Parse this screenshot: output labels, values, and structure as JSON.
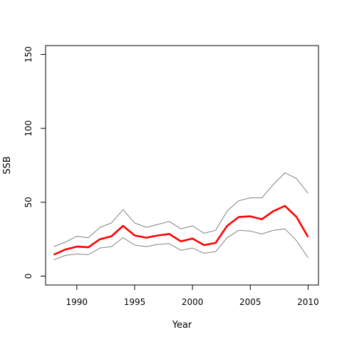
{
  "chart_data": {
    "type": "line",
    "title": "",
    "xlabel": "Year",
    "ylabel": "SSB",
    "xlim": [
      1987.3,
      2010.9
    ],
    "ylim": [
      -6,
      156
    ],
    "x_ticks": [
      1990,
      1995,
      2000,
      2005,
      2010
    ],
    "y_ticks": [
      0,
      50,
      100,
      150
    ],
    "grid": false,
    "legend": "none",
    "x": [
      1988,
      1989,
      1990,
      1991,
      1992,
      1993,
      1994,
      1995,
      1996,
      1997,
      1998,
      1999,
      2000,
      2001,
      2002,
      2003,
      2004,
      2005,
      2006,
      2007,
      2008,
      2009,
      2010
    ],
    "series": [
      {
        "role": "upper",
        "color": "#808080",
        "values": [
          20,
          23,
          27,
          26,
          33,
          36,
          45,
          36,
          33,
          35,
          37,
          32,
          34,
          29,
          31,
          44,
          51,
          53,
          53,
          62,
          70,
          66,
          56
        ]
      },
      {
        "role": "estimate",
        "color": "#ff0000",
        "values": [
          14.5,
          18,
          20,
          19.5,
          25,
          27,
          34,
          27.5,
          26,
          27.5,
          28.5,
          23.5,
          25.5,
          21,
          22.5,
          34,
          40,
          40.5,
          38.5,
          44,
          47.5,
          40,
          26.5
        ]
      },
      {
        "role": "lower",
        "color": "#808080",
        "values": [
          11,
          14,
          15,
          14.5,
          19,
          20,
          26,
          21,
          20,
          21.5,
          22,
          17.5,
          19,
          15.5,
          16.5,
          26,
          31,
          30.5,
          28.5,
          31,
          32,
          24,
          12.5
        ]
      }
    ]
  }
}
